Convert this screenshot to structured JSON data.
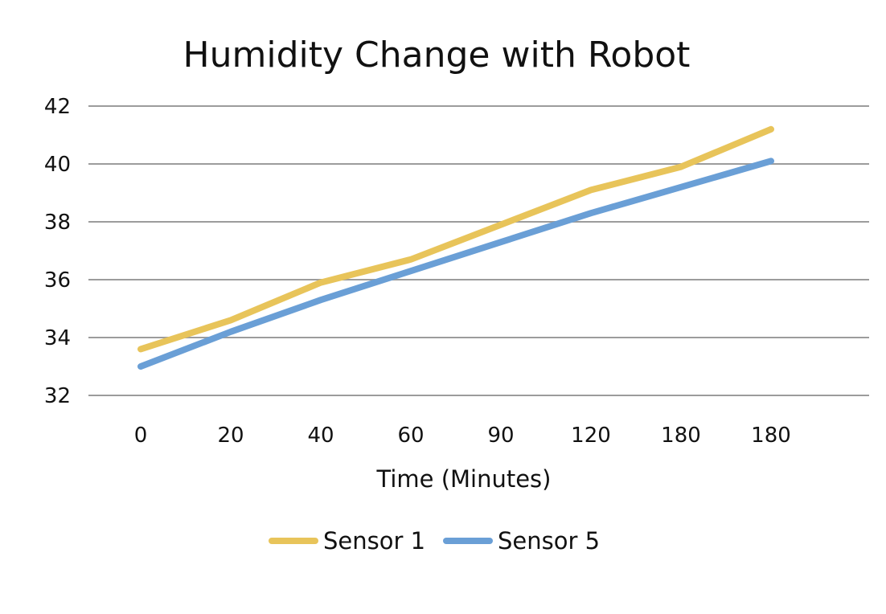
{
  "chart_data": {
    "type": "line",
    "title": "Humidity Change with Robot",
    "xlabel": "Time (Minutes)",
    "ylabel": "",
    "categories": [
      "0",
      "20",
      "40",
      "60",
      "90",
      "120",
      "180",
      "180"
    ],
    "ylim": [
      32,
      42
    ],
    "yticks": [
      "32",
      "34",
      "36",
      "38",
      "40",
      "42"
    ],
    "grid": true,
    "legend_position": "bottom",
    "series": [
      {
        "name": "Sensor 1",
        "color": "#E8C45A",
        "values": [
          33.6,
          34.6,
          35.9,
          36.7,
          37.9,
          39.1,
          39.9,
          41.2
        ]
      },
      {
        "name": "Sensor 5",
        "color": "#6A9FD6",
        "values": [
          33.0,
          34.2,
          35.3,
          36.3,
          37.3,
          38.3,
          39.2,
          40.1
        ]
      }
    ]
  }
}
